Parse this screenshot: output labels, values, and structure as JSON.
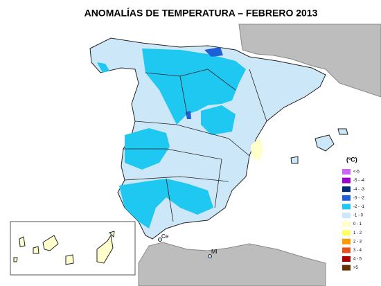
{
  "title": "ANOMALÍAS DE TEMPERATURA – FEBRERO 2013",
  "legend": {
    "unit": "(ºC)",
    "entries": [
      {
        "label": "<-5",
        "color": "#cc66ee"
      },
      {
        "label": "-5 - -4",
        "color": "#9900cc"
      },
      {
        "label": "-4 - -3",
        "color": "#002a7a"
      },
      {
        "label": "-3 - -2",
        "color": "#1f5fd6"
      },
      {
        "label": "-2 - -1",
        "color": "#1ec8f0"
      },
      {
        "label": "-1 - 0",
        "color": "#cce8f8"
      },
      {
        "label": "0 - 1",
        "color": "#ffffcc"
      },
      {
        "label": "1 - 2",
        "color": "#ffff66"
      },
      {
        "label": "2 - 3",
        "color": "#ff9900"
      },
      {
        "label": "3 - 4",
        "color": "#e8501e"
      },
      {
        "label": "4 - 5",
        "color": "#aa0000"
      },
      {
        "label": ">5",
        "color": "#663300"
      }
    ]
  },
  "places": {
    "ceuta": "Ce",
    "melilla": "Ml"
  }
}
